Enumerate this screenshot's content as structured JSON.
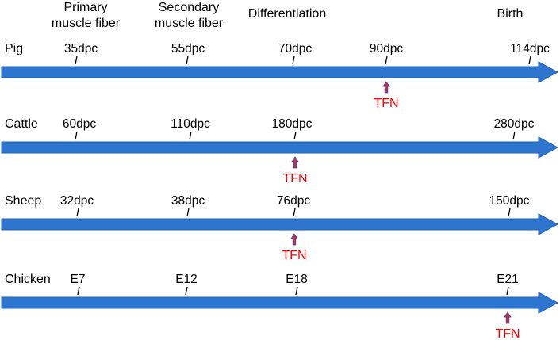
{
  "stages": [
    {
      "lines": [
        "Primary",
        "muscle fiber"
      ]
    },
    {
      "lines": [
        "Secondary",
        "muscle fiber"
      ]
    },
    {
      "lines": [
        "Differentiation"
      ]
    },
    {
      "lines": [
        "Birth"
      ]
    }
  ],
  "colors": {
    "arrow": "#2E75CF",
    "arrow_edge": "#2563B5",
    "tick": "#000000",
    "tfn_text": "#FF0000",
    "tfn_arrow": "#C0304A",
    "tfn_arrow_edge": "#3B4A9A"
  },
  "tfn_label": "TFN",
  "species": [
    {
      "name": "Pig",
      "ticks": [
        {
          "label": "35dpc",
          "stage": 0
        },
        {
          "label": "55dpc",
          "stage": 1
        },
        {
          "label": "70dpc",
          "stage": 2
        },
        {
          "label": "90dpc",
          "stage": null,
          "tfn": true
        },
        {
          "label": "114dpc",
          "stage": 3
        }
      ]
    },
    {
      "name": "Cattle",
      "ticks": [
        {
          "label": "60dpc",
          "stage": 0
        },
        {
          "label": "110dpc",
          "stage": 1
        },
        {
          "label": "180dpc",
          "stage": 2,
          "tfn": true
        },
        {
          "label": "280dpc",
          "stage": 3
        }
      ]
    },
    {
      "name": "Sheep",
      "ticks": [
        {
          "label": "32dpc",
          "stage": 0
        },
        {
          "label": "38dpc",
          "stage": 1
        },
        {
          "label": "76dpc",
          "stage": 2,
          "tfn": true
        },
        {
          "label": "150dpc",
          "stage": 3
        }
      ]
    },
    {
      "name": "Chicken",
      "ticks": [
        {
          "label": "E7",
          "stage": 0
        },
        {
          "label": "E12",
          "stage": 1
        },
        {
          "label": "E18",
          "stage": 2
        },
        {
          "label": "E21",
          "stage": 3,
          "tfn": true
        }
      ]
    }
  ]
}
